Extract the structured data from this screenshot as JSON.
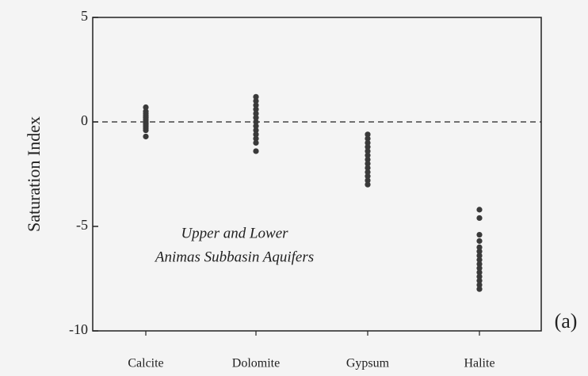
{
  "chart_data": {
    "type": "strip",
    "ylabel": "Saturation Index",
    "categories": [
      "Calcite",
      "Dolomite",
      "Gypsum",
      "Halite"
    ],
    "values": [
      [
        0.7,
        0.5,
        0.4,
        0.3,
        0.2,
        0.1,
        0,
        -0.1,
        -0.2,
        -0.3,
        -0.4,
        -0.7
      ],
      [
        1.2,
        1.0,
        0.8,
        0.6,
        0.4,
        0.2,
        0,
        -0.2,
        -0.4,
        -0.6,
        -0.8,
        -1.0,
        -1.4
      ],
      [
        -0.6,
        -0.8,
        -1.0,
        -1.2,
        -1.4,
        -1.6,
        -1.8,
        -2.0,
        -2.2,
        -2.4,
        -2.6,
        -2.8,
        -3.0
      ],
      [
        -4.2,
        -4.6,
        -5.4,
        -5.7,
        -6.0,
        -6.2,
        -6.4,
        -6.6,
        -6.8,
        -7.0,
        -7.2,
        -7.4,
        -7.6,
        -7.8,
        -8.0
      ]
    ],
    "color": "#3a3a3a",
    "ylim": [
      -10,
      5
    ],
    "yticks": [
      -10,
      -5,
      0,
      5
    ],
    "reference_line": 0,
    "annotation": [
      "Upper and Lower",
      "Animas Subbasin Aquifers"
    ],
    "panel_label": "(a)"
  }
}
